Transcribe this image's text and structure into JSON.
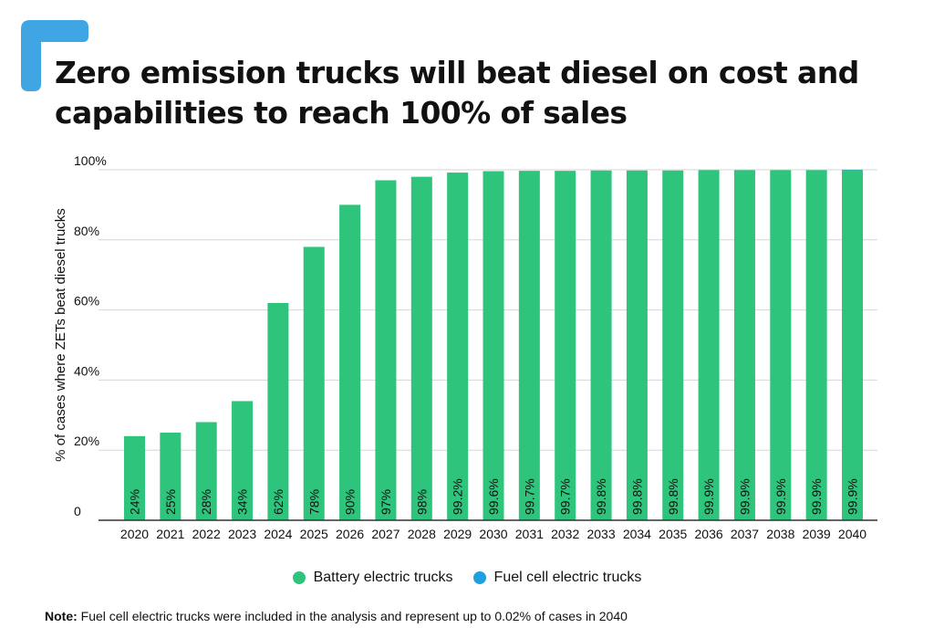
{
  "title": "Zero emission trucks will beat diesel on cost and capabilities to reach 100% of sales",
  "note": {
    "label": "Note:",
    "text": "Fuel cell electric trucks were included in the analysis and represent up to 0.02% of cases in 2040"
  },
  "colors": {
    "accent": "#3fa6e3",
    "battery": "#2ec47b",
    "fuel_cell": "#1e9fe0",
    "grid": "#d6d6d6",
    "axis": "#333333"
  },
  "chart_data": {
    "type": "bar",
    "title": "Zero emission trucks will beat diesel on cost and capabilities to reach 100% of sales",
    "xlabel": "",
    "ylabel": "% of cases where ZETs beat diesel trucks",
    "ylim": [
      0,
      100
    ],
    "yticks": [
      0,
      20,
      40,
      60,
      80,
      100
    ],
    "ytick_labels": [
      "0",
      "20%",
      "40%",
      "60%",
      "80%",
      "100%"
    ],
    "grid": true,
    "legend_position": "bottom-center",
    "categories": [
      "2020",
      "2021",
      "2022",
      "2023",
      "2024",
      "2025",
      "2026",
      "2027",
      "2028",
      "2029",
      "2030",
      "2031",
      "2032",
      "2033",
      "2034",
      "2035",
      "2036",
      "2037",
      "2038",
      "2039",
      "2040"
    ],
    "series": [
      {
        "name": "Battery electric trucks",
        "color": "#2ec47b",
        "values": [
          24,
          25,
          28,
          34,
          62,
          78,
          90,
          97,
          98,
          99.2,
          99.6,
          99.7,
          99.7,
          99.8,
          99.8,
          99.8,
          99.9,
          99.9,
          99.9,
          99.9,
          99.9
        ],
        "labels": [
          "24%",
          "25%",
          "28%",
          "34%",
          "62%",
          "78%",
          "90%",
          "97%",
          "98%",
          "99.2%",
          "99.6%",
          "99.7%",
          "99.7%",
          "99.8%",
          "99.8%",
          "99.8%",
          "99.9%",
          "99.9%",
          "99.9%",
          "99.9%",
          "99.9%"
        ]
      },
      {
        "name": "Fuel cell electric trucks",
        "color": "#1e9fe0",
        "values": [
          0,
          0,
          0,
          0,
          0,
          0,
          0,
          0,
          0,
          0,
          0,
          0,
          0,
          0,
          0,
          0,
          0,
          0,
          0,
          0,
          0.02
        ]
      }
    ]
  }
}
